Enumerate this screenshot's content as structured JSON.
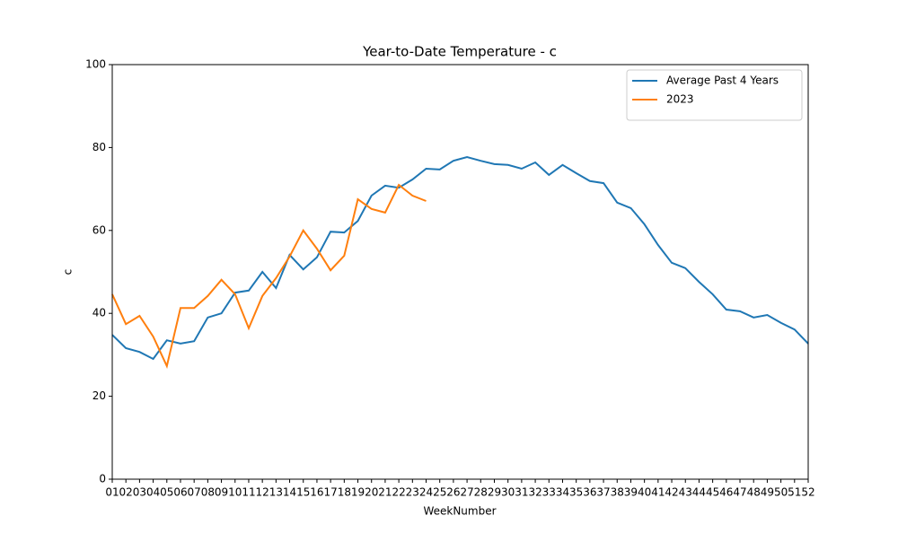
{
  "chart_data": {
    "type": "line",
    "title": "Year-to-Date Temperature - c",
    "x_label": "WeekNumber",
    "y_label": "c",
    "categories": [
      "01",
      "02",
      "03",
      "04",
      "05",
      "06",
      "07",
      "08",
      "09",
      "10",
      "11",
      "12",
      "13",
      "14",
      "15",
      "16",
      "17",
      "18",
      "19",
      "20",
      "21",
      "22",
      "23",
      "24",
      "25",
      "26",
      "27",
      "28",
      "29",
      "30",
      "31",
      "32",
      "33",
      "34",
      "35",
      "36",
      "37",
      "38",
      "39",
      "40",
      "41",
      "42",
      "43",
      "44",
      "45",
      "46",
      "47",
      "48",
      "49",
      "50",
      "51",
      "52"
    ],
    "series": [
      {
        "name": "Average Past 4 Years",
        "color": "#1f77b4",
        "values": [
          34.8,
          31.6,
          30.7,
          29.0,
          33.5,
          32.7,
          33.3,
          39.0,
          40.0,
          45.0,
          45.5,
          50.0,
          46.1,
          54.1,
          50.6,
          53.5,
          59.7,
          59.5,
          62.3,
          68.4,
          70.8,
          70.3,
          72.3,
          74.9,
          74.7,
          76.8,
          77.7,
          76.8,
          76.0,
          75.8,
          74.9,
          76.4,
          73.4,
          75.8,
          73.8,
          71.9,
          71.4,
          66.7,
          65.4,
          61.5,
          56.5,
          52.2,
          50.9,
          47.6,
          44.6,
          40.9,
          40.5,
          39.0,
          39.6,
          37.7,
          36.1,
          32.7
        ]
      },
      {
        "name": "2023",
        "color": "#ff7f0e",
        "values": [
          44.6,
          37.4,
          39.4,
          34.4,
          27.3,
          41.3,
          41.3,
          44.2,
          48.1,
          44.6,
          36.4,
          44.2,
          48.5,
          53.7,
          60.0,
          55.6,
          50.4,
          53.9,
          67.5,
          65.2,
          64.3,
          71.0,
          68.4,
          67.1,
          null,
          null,
          null,
          null,
          null,
          null,
          null,
          null,
          null,
          null,
          null,
          null,
          null,
          null,
          null,
          null,
          null,
          null,
          null,
          null,
          null,
          null,
          null,
          null,
          null,
          null,
          null,
          null
        ]
      }
    ],
    "ylim": [
      0,
      100
    ],
    "yticks": [
      0,
      20,
      40,
      60,
      80,
      100
    ],
    "legend": "upper right"
  }
}
